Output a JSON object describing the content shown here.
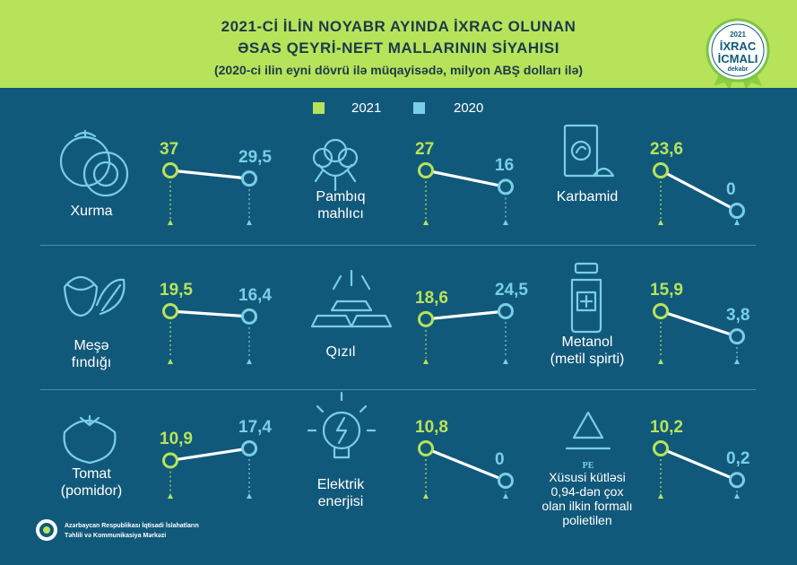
{
  "header": {
    "title_line1": "2021-Cİ İLİN NOYABR AYINDA İXRAC OLUNAN",
    "title_line2": "ƏSAS QEYRİ-NEFT MALLARININ SİYAHISI",
    "subtitle": "(2020-ci ilin eyni dövrü ilə müqayisədə, milyon ABŞ dolları ilə)"
  },
  "badge": {
    "year": "2021",
    "line1": "İXRAC",
    "line2": "İCMALI",
    "month": "dekabr"
  },
  "legend": [
    {
      "label": "2021",
      "color": "#b7e35a"
    },
    {
      "label": "2020",
      "color": "#79cfe5"
    }
  ],
  "footer": {
    "line1": "Azərbaycan Respublikası İqtisadi İslahatların",
    "line2": "Təhlili və Kommunikasiya Mərkəzi"
  },
  "colors": {
    "background": "#11597a",
    "accent_2021": "#b7e35a",
    "accent_2020": "#79cfe5",
    "header": "#b7e35a"
  },
  "chart_data": {
    "type": "line",
    "title": "2021-Cİ İLİN NOYABR AYINDA İXRAC OLUNAN ƏSAS QEYRİ-NEFT MALLARININ SİYAHISI",
    "subtitle": "(2020-ci ilin eyni dövrü ilə müqayisədə, milyon ABŞ dolları ilə)",
    "categories": [
      "2021",
      "2020"
    ],
    "legend_position": "top-center",
    "grid": false,
    "items": [
      {
        "label_lines": [
          "Xurma"
        ],
        "icon": "persimmon-icon",
        "v2021": 37,
        "v2020": 29.5,
        "v2021_label": "37",
        "v2020_label": "29,5"
      },
      {
        "label_lines": [
          "Pambıq",
          "mahlıcı"
        ],
        "icon": "cotton-icon",
        "v2021": 27,
        "v2020": 16,
        "v2021_label": "27",
        "v2020_label": "16"
      },
      {
        "label_lines": [
          "Karbamid"
        ],
        "icon": "fertilizer-bag-icon",
        "v2021": 23.6,
        "v2020": 0,
        "v2021_label": "23,6",
        "v2020_label": "0"
      },
      {
        "label_lines": [
          "Meşə",
          "fındığı"
        ],
        "icon": "hazelnut-icon",
        "v2021": 19.5,
        "v2020": 16.4,
        "v2021_label": "19,5",
        "v2020_label": "16,4"
      },
      {
        "label_lines": [
          "Qızıl"
        ],
        "icon": "gold-bars-icon",
        "v2021": 18.6,
        "v2020": 24.5,
        "v2021_label": "18,6",
        "v2020_label": "24,5"
      },
      {
        "label_lines": [
          "Metanol",
          "(metil spirti)"
        ],
        "icon": "bottle-icon",
        "v2021": 15.9,
        "v2020": 3.8,
        "v2021_label": "15,9",
        "v2020_label": "3,8"
      },
      {
        "label_lines": [
          "Tomat",
          "(pomidor)"
        ],
        "icon": "tomato-icon",
        "v2021": 10.9,
        "v2020": 17.4,
        "v2021_label": "10,9",
        "v2020_label": "17,4"
      },
      {
        "label_lines": [
          "Elektrik",
          "enerjisi"
        ],
        "icon": "light-bulb-icon",
        "v2021": 10.8,
        "v2020": 0,
        "v2021_label": "10,8",
        "v2020_label": "0"
      },
      {
        "label_lines": [
          "Xüsusi kütləsi",
          "0,94-dən çox",
          "olan ilkin formalı",
          "polietilen"
        ],
        "icon": "recycle-pe-icon",
        "v2021": 10.2,
        "v2020": 0.2,
        "v2021_label": "10,2",
        "v2020_label": "0,2"
      }
    ]
  }
}
